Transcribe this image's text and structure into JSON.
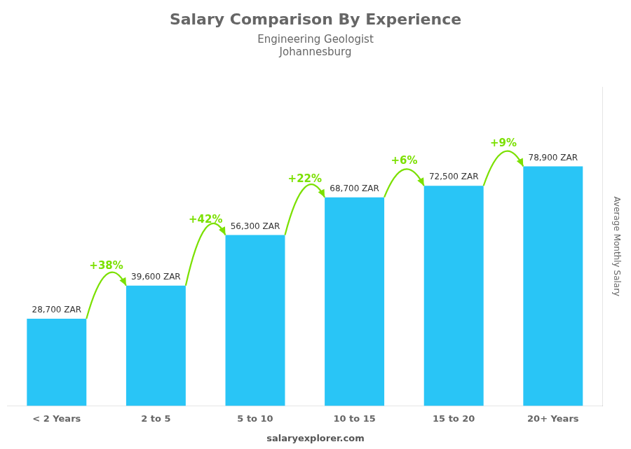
{
  "chart_data": {
    "type": "bar",
    "title": "Salary Comparison By Experience",
    "subtitle": [
      "Engineering Geologist",
      "Johannesburg"
    ],
    "ylabel": "Average Monthly Salary",
    "categories": [
      "< 2 Years",
      "2 to 5",
      "5 to 10",
      "10 to 15",
      "15 to 20",
      "20+ Years"
    ],
    "values": [
      28700,
      39600,
      56300,
      68700,
      72500,
      78900
    ],
    "value_labels": [
      "28,700 ZAR",
      "39,600 ZAR",
      "56,300 ZAR",
      "68,700 ZAR",
      "72,500 ZAR",
      "78,900 ZAR"
    ],
    "data_labels": true,
    "color": "#29c5f6",
    "ylim": [
      0,
      105000
    ],
    "tick_labels": "x",
    "grid": false,
    "annotations": [
      {
        "text": "+38%",
        "from": "< 2 Years",
        "to": "2 to 5",
        "color": "#7be000"
      },
      {
        "text": "+42%",
        "from": "2 to 5",
        "to": "5 to 10",
        "color": "#7be000"
      },
      {
        "text": "+22%",
        "from": "5 to 10",
        "to": "10 to 15",
        "color": "#7be000"
      },
      {
        "text": "+6%",
        "from": "10 to 15",
        "to": "15 to 20",
        "color": "#7be000"
      },
      {
        "text": "+9%",
        "from": "15 to 20",
        "to": "20+ Years",
        "color": "#7be000"
      },
      {
        "text": "salaryexplorer.com"
      }
    ]
  }
}
